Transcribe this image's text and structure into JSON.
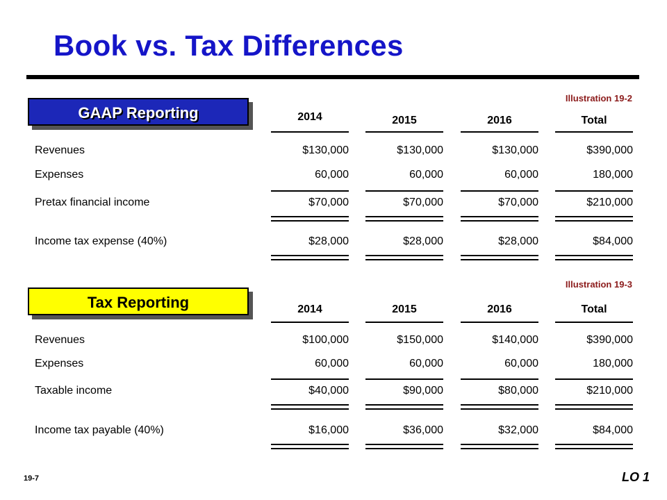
{
  "title": "Book vs. Tax Differences",
  "sections": [
    {
      "box_label": "GAAP Reporting",
      "illustration": "Illustration 19-2",
      "columns": [
        "2014",
        "2015",
        "2016",
        "Total"
      ],
      "rows": [
        {
          "label": "Revenues",
          "values": [
            "$130,000",
            "$130,000",
            "$130,000",
            "$390,000"
          ]
        },
        {
          "label": "Expenses",
          "values": [
            "60,000",
            "60,000",
            "60,000",
            "180,000"
          ]
        },
        {
          "label": "Pretax financial income",
          "values": [
            "$70,000",
            "$70,000",
            "$70,000",
            "$210,000"
          ]
        },
        {
          "label": "Income tax expense (40%)",
          "values": [
            "$28,000",
            "$28,000",
            "$28,000",
            "$84,000"
          ]
        }
      ]
    },
    {
      "box_label": "Tax Reporting",
      "illustration": "Illustration 19-3",
      "columns": [
        "2014",
        "2015",
        "2016",
        "Total"
      ],
      "rows": [
        {
          "label": "Revenues",
          "values": [
            "$100,000",
            "$150,000",
            "$140,000",
            "$390,000"
          ]
        },
        {
          "label": "Expenses",
          "values": [
            "60,000",
            "60,000",
            "60,000",
            "180,000"
          ]
        },
        {
          "label": "Taxable income",
          "values": [
            "$40,000",
            "$90,000",
            "$80,000",
            "$210,000"
          ]
        },
        {
          "label": "Income tax payable (40%)",
          "values": [
            "$16,000",
            "$36,000",
            "$32,000",
            "$84,000"
          ]
        }
      ]
    }
  ],
  "footer": {
    "page": "19-7",
    "lo": "LO 1"
  }
}
